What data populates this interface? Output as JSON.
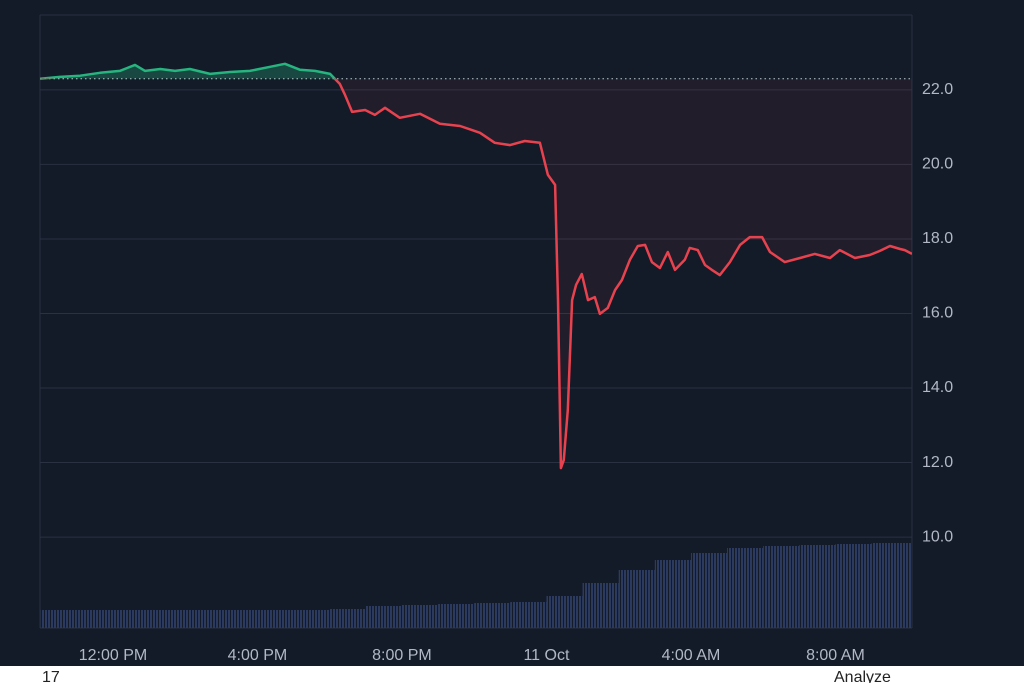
{
  "chart_data": {
    "type": "line",
    "baseline": 22.3,
    "above_color": "#26b47f",
    "below_color": "#e8424f",
    "volume_color": "#2b3a5e",
    "grid": true,
    "xlim": [
      -2.02,
      22.12
    ],
    "ylim": [
      7.56,
      24.01
    ],
    "xticks": [
      {
        "value": 0,
        "label": "12:00 PM"
      },
      {
        "value": 4,
        "label": "4:00 PM"
      },
      {
        "value": 8,
        "label": "8:00 PM"
      },
      {
        "value": 12,
        "label": "11 Oct"
      },
      {
        "value": 16,
        "label": "4:00 AM"
      },
      {
        "value": 20,
        "label": "8:00 AM"
      }
    ],
    "yticks": [
      {
        "value": 10,
        "label": "10.0"
      },
      {
        "value": 12,
        "label": "12.0"
      },
      {
        "value": 14,
        "label": "14.0"
      },
      {
        "value": 16,
        "label": "16.0"
      },
      {
        "value": 18,
        "label": "18.0"
      },
      {
        "value": 20,
        "label": "20.0"
      },
      {
        "value": 22,
        "label": "22.0"
      }
    ],
    "series": [
      {
        "x": [
          -2.02,
          -1.47,
          -0.91,
          -0.36,
          0.19,
          0.61,
          0.89,
          1.31,
          1.72,
          2.13,
          2.69,
          3.24,
          3.79,
          4.35,
          4.76,
          5.18,
          5.59,
          6.01,
          6.28,
          6.42,
          6.62,
          6.98,
          7.25,
          7.53,
          7.94,
          8.5,
          9.05,
          9.61,
          10.16,
          10.57,
          10.99,
          11.4,
          11.82,
          12.04,
          12.24,
          12.32,
          12.4,
          12.48,
          12.59,
          12.71,
          12.82,
          12.98,
          13.15,
          13.34,
          13.48,
          13.7,
          13.9,
          14.09,
          14.31,
          14.53,
          14.73,
          14.92,
          15.14,
          15.36,
          15.56,
          15.83,
          15.97,
          16.19,
          16.39,
          16.58,
          16.8,
          17.08,
          17.36,
          17.63,
          17.97,
          18.19,
          18.6,
          19.02,
          19.43,
          19.85,
          20.12,
          20.54,
          20.95,
          21.23,
          21.51,
          21.79,
          21.92,
          22.12
        ],
        "values": [
          22.3,
          22.35,
          22.38,
          22.46,
          22.51,
          22.67,
          22.51,
          22.56,
          22.51,
          22.56,
          22.43,
          22.48,
          22.51,
          22.62,
          22.7,
          22.54,
          22.51,
          22.43,
          22.16,
          21.87,
          21.41,
          21.46,
          21.33,
          21.52,
          21.25,
          21.36,
          21.09,
          21.03,
          20.85,
          20.58,
          20.52,
          20.63,
          20.58,
          19.72,
          19.45,
          16.36,
          11.85,
          12.07,
          13.41,
          16.36,
          16.77,
          17.06,
          16.36,
          16.44,
          15.99,
          16.15,
          16.63,
          16.9,
          17.44,
          17.81,
          17.84,
          17.38,
          17.22,
          17.65,
          17.17,
          17.44,
          17.76,
          17.7,
          17.3,
          17.17,
          17.03,
          17.38,
          17.84,
          18.05,
          18.05,
          17.65,
          17.38,
          17.49,
          17.6,
          17.49,
          17.7,
          17.49,
          17.57,
          17.68,
          17.81,
          17.73,
          17.7,
          17.6
        ]
      }
    ],
    "volume_x": [
      -2,
      -1,
      0,
      1,
      2,
      3,
      4,
      5,
      6,
      7,
      8,
      9,
      10,
      11,
      12,
      13,
      14,
      15,
      16,
      17,
      18,
      19,
      20,
      21
    ],
    "volume": [
      18,
      18,
      18,
      18,
      18,
      18,
      18,
      18,
      19,
      22,
      23,
      24,
      25,
      26,
      32,
      45,
      58,
      68,
      75,
      80,
      82,
      83,
      84,
      85
    ],
    "annotations": [
      "17",
      "Analyze"
    ]
  }
}
